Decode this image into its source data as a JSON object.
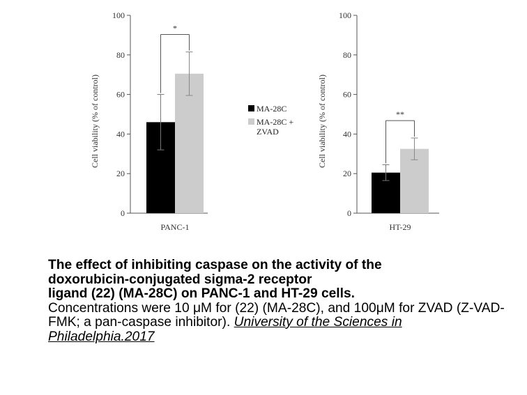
{
  "chart_data": [
    {
      "type": "bar",
      "categories": [
        "PANC-1"
      ],
      "ylabel": "Cell viability (% of control)",
      "ylim": [
        0,
        100
      ],
      "yticks": [
        0,
        20,
        40,
        60,
        80,
        100
      ],
      "series": [
        {
          "name": "MA-28C",
          "values": [
            46
          ],
          "error": [
            14
          ]
        },
        {
          "name": "MA-28C + ZVAD",
          "values": [
            70.5
          ],
          "error": [
            11
          ]
        }
      ],
      "significance": "*",
      "grid": false
    },
    {
      "type": "bar",
      "categories": [
        "HT-29"
      ],
      "ylabel": "Cell viability (% of control)",
      "ylim": [
        0,
        100
      ],
      "yticks": [
        0,
        20,
        40,
        60,
        80,
        100
      ],
      "series": [
        {
          "name": "MA-28C",
          "values": [
            20.5
          ],
          "error": [
            4
          ]
        },
        {
          "name": "MA-28C + ZVAD",
          "values": [
            32.5
          ],
          "error": [
            5.5
          ]
        }
      ],
      "significance": "**",
      "grid": false
    }
  ],
  "legend": {
    "placement": "between panels",
    "items": [
      {
        "label_lines": [
          "MA-28C"
        ],
        "color": "#000000"
      },
      {
        "label_lines": [
          "MA-28C +",
          "ZVAD"
        ],
        "color": "#cccccc"
      }
    ]
  },
  "colors": {
    "series_1": "#000000",
    "series_2": "#cccccc",
    "axis": "#555555"
  },
  "caption": {
    "bold_lines": [
      "The effect of inhibiting caspase on the activity of the",
      "doxorubicin-conjugated sigma-2 receptor",
      "ligand (22) (MA-28C) on PANC-1 and HT-29 cells."
    ],
    "text": "Concentrations were 10 μM for (22) (MA-28C), and 100μM for ZVAD (Z-VAD-FMK; a pan-caspase inhibitor).",
    "source": "University of the Sciences in Philadelphia.2017"
  }
}
